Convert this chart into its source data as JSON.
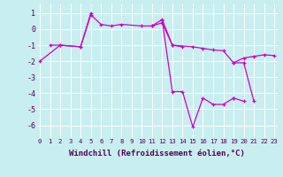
{
  "background_color": "#c8eef0",
  "line_color": "#cc00cc",
  "grid_color": "#ffffff",
  "xlabel": "Windchill (Refroidissement éolien,°C)",
  "xlabel_fontsize": 6.5,
  "xtick_fontsize": 5.2,
  "ytick_fontsize": 6,
  "ylim": [
    -6.8,
    1.6
  ],
  "xlim": [
    -0.3,
    23.3
  ],
  "yticks": [
    1,
    0,
    -1,
    -2,
    -3,
    -4,
    -5,
    -6
  ],
  "xticks": [
    0,
    1,
    2,
    3,
    4,
    5,
    6,
    7,
    8,
    9,
    10,
    11,
    12,
    13,
    14,
    15,
    16,
    17,
    18,
    19,
    20,
    21,
    22,
    23
  ],
  "series": [
    {
      "x": [
        1,
        2,
        4,
        5,
        6,
        7,
        8,
        10,
        11,
        12,
        13,
        14
      ],
      "y": [
        -1.0,
        -1.0,
        -1.1,
        0.9,
        0.3,
        0.2,
        0.3,
        0.2,
        0.2,
        0.6,
        -1.0,
        -1.1
      ]
    },
    {
      "x": [
        0,
        2,
        4,
        5
      ],
      "y": [
        -2.0,
        -1.0,
        -1.1,
        1.0
      ]
    },
    {
      "x": [
        11,
        12,
        13,
        15,
        16,
        17,
        18,
        19,
        20,
        21,
        22,
        23
      ],
      "y": [
        0.2,
        0.4,
        -1.0,
        -1.1,
        -1.2,
        -1.3,
        -1.35,
        -2.1,
        -1.8,
        -1.7,
        -1.6,
        -1.65
      ]
    },
    {
      "x": [
        12,
        13,
        14,
        15,
        16,
        17,
        18,
        19
      ],
      "y": [
        0.55,
        -3.9,
        -3.9,
        -6.1,
        -4.3,
        -4.7,
        -4.7,
        -4.3
      ]
    },
    {
      "x": [
        19,
        20
      ],
      "y": [
        -4.3,
        -4.5
      ]
    },
    {
      "x": [
        19,
        20,
        21
      ],
      "y": [
        -2.1,
        -2.1,
        -4.5
      ]
    }
  ],
  "marker": "+",
  "markersize": 3.0,
  "linewidth": 0.9
}
